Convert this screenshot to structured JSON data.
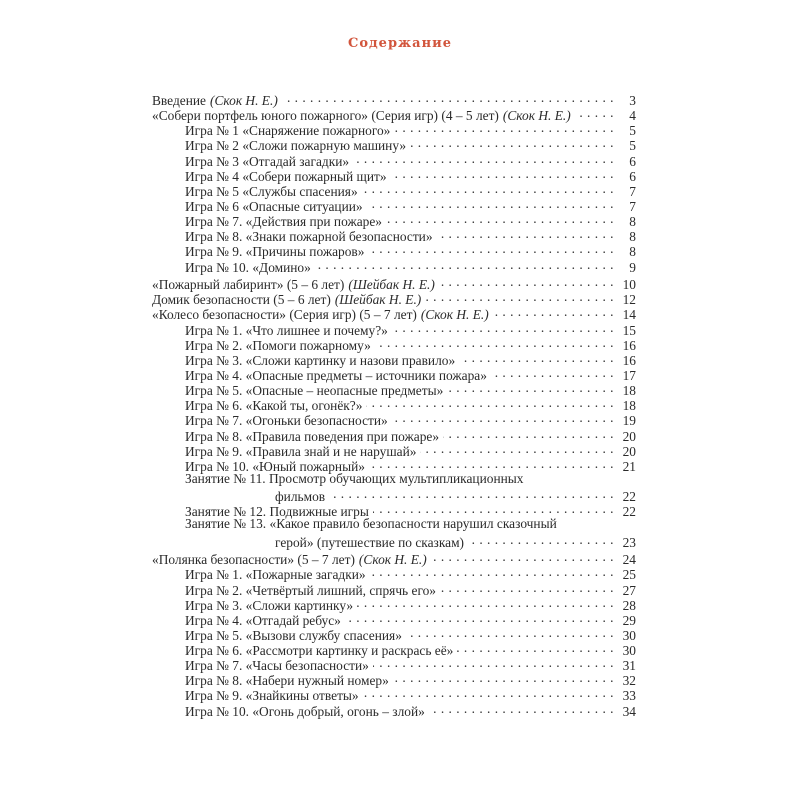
{
  "title": "Содержание",
  "groups": [
    {
      "entries": [
        {
          "level": 0,
          "text": "Введение",
          "author": "(Скок Н. Е.)",
          "page": "3"
        },
        {
          "level": 0,
          "text": "«Собери портфель юного пожарного» (Серия игр) (4 – 5 лет)",
          "author": "(Скок Н. Е.)",
          "page": "4"
        },
        {
          "level": 1,
          "text": "Игра № 1 «Снаряжение пожарного»",
          "page": "5"
        },
        {
          "level": 1,
          "text": "Игра № 2 «Сложи пожарную машину»",
          "page": "5"
        },
        {
          "level": 1,
          "text": "Игра № 3 «Отгадай загадки»",
          "page": "6"
        },
        {
          "level": 1,
          "text": "Игра № 4 «Собери пожарный щит»",
          "page": "6"
        },
        {
          "level": 1,
          "text": "Игра № 5 «Службы спасения»",
          "page": "7"
        },
        {
          "level": 1,
          "text": "Игра № 6 «Опасные ситуации»",
          "page": "7"
        },
        {
          "level": 1,
          "text": "Игра № 7. «Действия при пожаре»",
          "page": "8"
        },
        {
          "level": 1,
          "text": "Игра № 8. «Знаки пожарной безопасности»",
          "page": "8"
        },
        {
          "level": 1,
          "text": "Игра № 9. «Причины пожаров»",
          "page": "8"
        },
        {
          "level": 1,
          "text": "Игра № 10. «Домино»",
          "page": "9"
        }
      ]
    },
    {
      "entries": [
        {
          "level": 0,
          "text": "«Пожарный лабиринт» (5 – 6 лет)",
          "author": "(Шейбак Н. Е.)",
          "page": "10"
        },
        {
          "level": 0,
          "text": "Домик безопасности (5 – 6 лет)",
          "author": "(Шейбак Н. Е.)",
          "page": "12"
        },
        {
          "level": 0,
          "text": "«Колесо безопасности» (Серия игр) (5 – 7 лет)",
          "author": "(Скок Н. Е.)",
          "page": "14"
        },
        {
          "level": 1,
          "text": "Игра № 1. «Что лишнее и почему?»",
          "page": "15"
        },
        {
          "level": 1,
          "text": "Игра № 2. «Помоги пожарному»",
          "page": "16"
        },
        {
          "level": 1,
          "text": "Игра № 3. «Сложи картинку и назови правило»",
          "page": "16"
        },
        {
          "level": 1,
          "text": "Игра № 4. «Опасные предметы – источники пожара»",
          "page": "17"
        },
        {
          "level": 1,
          "text": "Игра № 5. «Опасные – неопасные предметы»",
          "page": "18"
        },
        {
          "level": 1,
          "text": "Игра № 6. «Какой ты, огонёк?»",
          "page": "18"
        },
        {
          "level": 1,
          "text": "Игра № 7. «Огоньки безопасности»",
          "page": "19"
        },
        {
          "level": 1,
          "text": "Игра № 8. «Правила поведения при пожаре»",
          "page": "20"
        },
        {
          "level": 1,
          "text": "Игра № 9. «Правила знай и не нарушай»",
          "page": "20"
        },
        {
          "level": 1,
          "text": "Игра № 10. «Юный пожарный»",
          "page": "21"
        },
        {
          "level": 1,
          "text": "Занятие № 11. Просмотр обучающих мультипликационных",
          "continuation": "фильмов",
          "page": "22"
        },
        {
          "level": 1,
          "text": "Занятие № 12. Подвижные игры",
          "page": "22"
        },
        {
          "level": 1,
          "text": "Занятие № 13. «Какое правило безопасности нарушил сказочный",
          "continuation": "герой» (путешествие по сказкам)",
          "page": "23"
        }
      ]
    },
    {
      "entries": [
        {
          "level": 0,
          "text": "«Полянка безопасности» (5 – 7 лет)",
          "author": "(Скок Н. Е.)",
          "page": "24"
        },
        {
          "level": 1,
          "text": "Игра № 1. «Пожарные загадки»",
          "page": "25"
        },
        {
          "level": 1,
          "text": "Игра № 2. «Четвёртый лишний, спрячь его»",
          "page": "27"
        },
        {
          "level": 1,
          "text": "Игра № 3. «Сложи картинку»",
          "page": "28"
        },
        {
          "level": 1,
          "text": "Игра № 4. «Отгадай ребус»",
          "page": "29"
        },
        {
          "level": 1,
          "text": "Игра № 5. «Вызови службу спасения»",
          "page": "30"
        },
        {
          "level": 1,
          "text": "Игра № 6. «Рассмотри картинку и раскрась её»",
          "page": "30"
        },
        {
          "level": 1,
          "text": "Игра № 7. «Часы безопасности»",
          "page": "31"
        },
        {
          "level": 1,
          "text": "Игра № 8. «Набери нужный номер»",
          "page": "32"
        },
        {
          "level": 1,
          "text": "Игра № 9. «Знайкины ответы»",
          "page": "33"
        },
        {
          "level": 1,
          "text": "Игра № 10. «Огонь добрый, огонь – злой»",
          "page": "34"
        }
      ]
    }
  ],
  "colors": {
    "title": "#d2553c",
    "text": "#2a2a2a"
  }
}
